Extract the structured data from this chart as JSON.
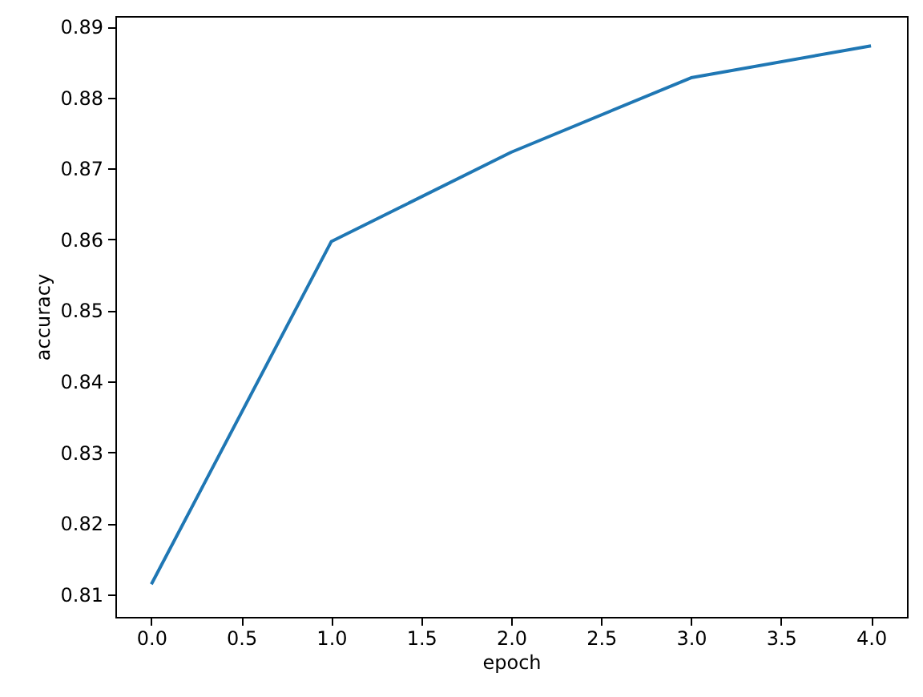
{
  "chart_data": {
    "type": "line",
    "xlabel": "epoch",
    "ylabel": "accuracy",
    "x": [
      0,
      1,
      2,
      3,
      4
    ],
    "series": [
      {
        "color": "#1f77b4",
        "values": [
          0.8114,
          0.8597,
          0.8723,
          0.8828,
          0.8873
        ]
      }
    ],
    "xlim": [
      -0.2,
      4.2
    ],
    "ylim": [
      0.8068,
      0.8915
    ],
    "xticks": [
      {
        "value": 0,
        "label": "0.0"
      },
      {
        "value": 0.5,
        "label": "0.5"
      },
      {
        "value": 1,
        "label": "1.0"
      },
      {
        "value": 1.5,
        "label": "1.5"
      },
      {
        "value": 2,
        "label": "2.0"
      },
      {
        "value": 2.5,
        "label": "2.5"
      },
      {
        "value": 3,
        "label": "3.0"
      },
      {
        "value": 3.5,
        "label": "3.5"
      },
      {
        "value": 4,
        "label": "4.0"
      }
    ],
    "yticks": [
      {
        "value": 0.81,
        "label": "0.81"
      },
      {
        "value": 0.82,
        "label": "0.82"
      },
      {
        "value": 0.83,
        "label": "0.83"
      },
      {
        "value": 0.84,
        "label": "0.84"
      },
      {
        "value": 0.85,
        "label": "0.85"
      },
      {
        "value": 0.86,
        "label": "0.86"
      },
      {
        "value": 0.87,
        "label": "0.87"
      },
      {
        "value": 0.88,
        "label": "0.88"
      },
      {
        "value": 0.89,
        "label": "0.89"
      }
    ],
    "grid": false
  }
}
